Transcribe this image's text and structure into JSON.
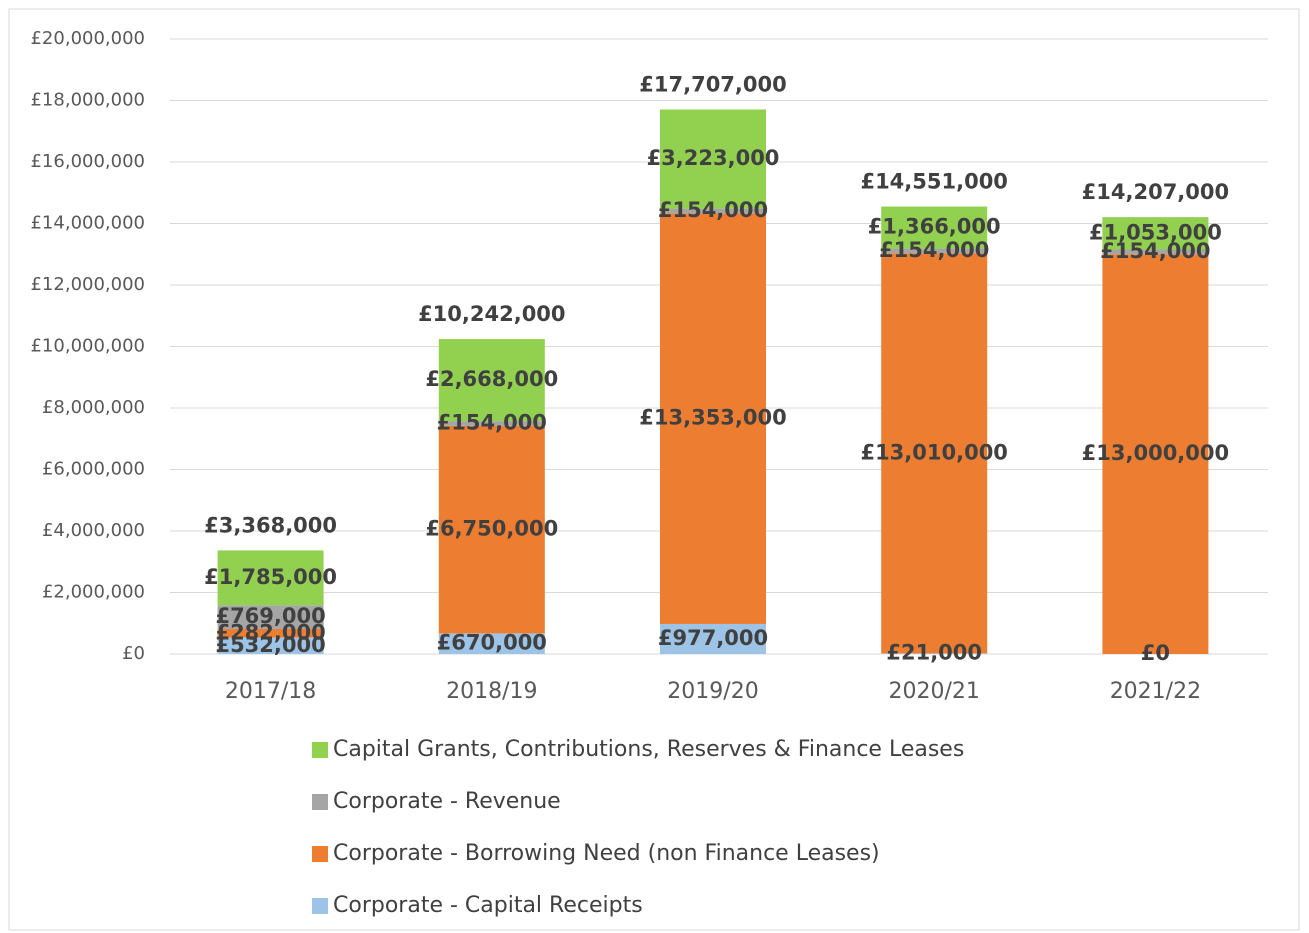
{
  "chart_data": {
    "type": "stacked_bar",
    "categories": [
      "2017/18",
      "2018/19",
      "2019/20",
      "2020/21",
      "2021/22"
    ],
    "series": [
      {
        "name": "Corporate - Capital Receipts",
        "color": "#9dc3e6",
        "values": [
          532000,
          670000,
          977000,
          21000,
          0
        ],
        "value_labels": [
          "£532,000",
          "£670,000",
          "£977,000",
          "£21,000",
          "£0"
        ]
      },
      {
        "name": "Corporate - Borrowing Need (non Finance Leases)",
        "color": "#ed7d31",
        "values": [
          282000,
          6750000,
          13353000,
          13010000,
          13000000
        ],
        "value_labels": [
          "£282,000",
          "£6,750,000",
          "£13,353,000",
          "£13,010,000",
          "£13,000,000"
        ]
      },
      {
        "name": "Corporate - Revenue",
        "color": "#a5a5a5",
        "values": [
          769000,
          154000,
          154000,
          154000,
          154000
        ],
        "value_labels": [
          "£769,000",
          "£154,000",
          "£154,000",
          "£154,000",
          "£154,000"
        ]
      },
      {
        "name": "Capital Grants, Contributions, Reserves & Finance Leases",
        "color": "#92d050",
        "values": [
          1785000,
          2668000,
          3223000,
          1366000,
          1053000
        ],
        "value_labels": [
          "£1,785,000",
          "£2,668,000",
          "£3,223,000",
          "£1,366,000",
          "£1,053,000"
        ]
      }
    ],
    "totals": {
      "values": [
        3368000,
        10242000,
        17707000,
        14551000,
        14207000
      ],
      "value_labels": [
        "£3,368,000",
        "£10,242,000",
        "£17,707,000",
        "£14,551,000",
        "£14,207,000"
      ]
    },
    "ylim": [
      0,
      20000000
    ],
    "yticks": [
      {
        "value": 0,
        "label": "£0"
      },
      {
        "value": 2000000,
        "label": "£2,000,000"
      },
      {
        "value": 4000000,
        "label": "£4,000,000"
      },
      {
        "value": 6000000,
        "label": "£6,000,000"
      },
      {
        "value": 8000000,
        "label": "£8,000,000"
      },
      {
        "value": 10000000,
        "label": "£10,000,000"
      },
      {
        "value": 12000000,
        "label": "£12,000,000"
      },
      {
        "value": 14000000,
        "label": "£14,000,000"
      },
      {
        "value": 16000000,
        "label": "£16,000,000"
      },
      {
        "value": 18000000,
        "label": "£18,000,000"
      },
      {
        "value": 20000000,
        "label": "£20,000,000"
      }
    ],
    "grid": true,
    "legend": "bottom"
  }
}
